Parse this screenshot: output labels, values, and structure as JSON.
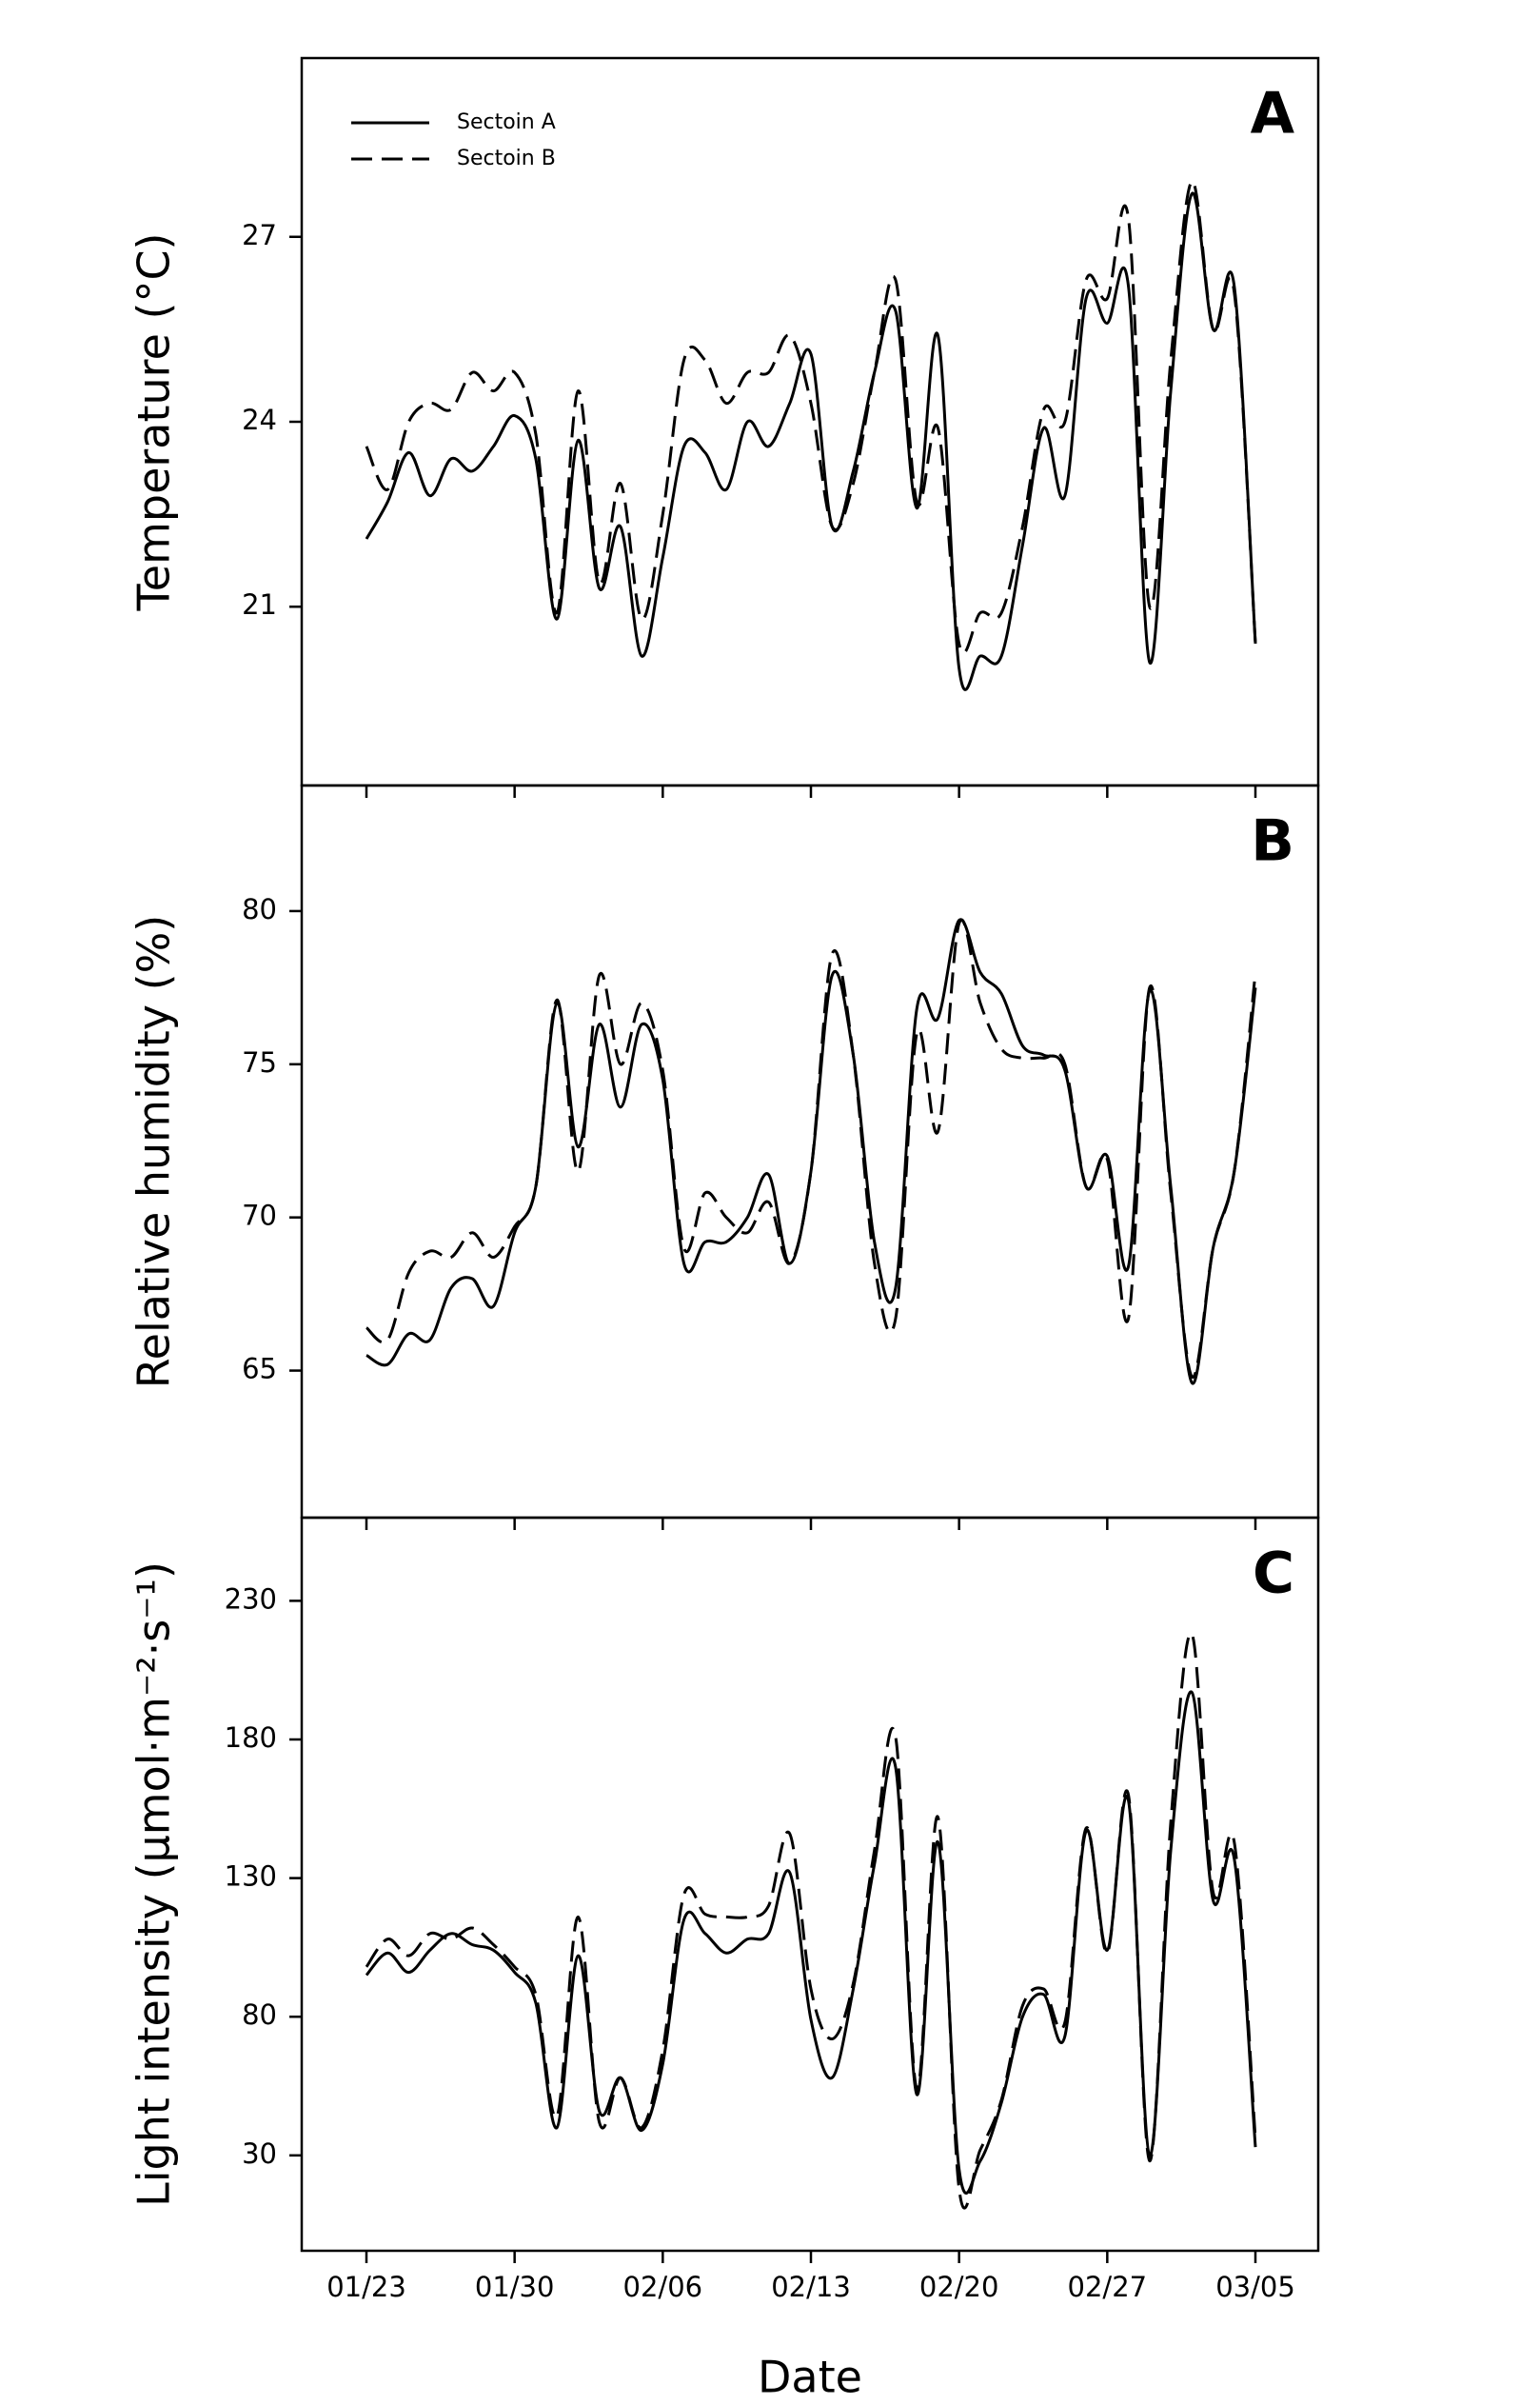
{
  "chart_data": [
    {
      "type": "line",
      "label": "A",
      "ylabel": "Temperature (°C)",
      "ylim": [
        18.1,
        29.9
      ],
      "yticks": [
        21,
        24,
        27
      ],
      "legend": "upper left",
      "series": [
        {
          "name": "Sectoin A",
          "color": "#000000",
          "line_style": "solid",
          "values": [
            22.1,
            22.7,
            23.5,
            22.8,
            23.4,
            23.2,
            23.6,
            24.1,
            23.4,
            20.8,
            23.7,
            21.3,
            22.3,
            20.2,
            21.8,
            23.6,
            23.5,
            22.9,
            24.0,
            23.6,
            24.3,
            25.1,
            22.3,
            23.2,
            24.8,
            25.8,
            22.6,
            25.4,
            20.0,
            20.2,
            20.2,
            22.0,
            23.9,
            22.8,
            26.0,
            25.6,
            26.2,
            20.1,
            24.5,
            27.7,
            25.5,
            26.2,
            20.4
          ]
        },
        {
          "name": "Sectoin B",
          "color": "#000000",
          "line_style": "dashed",
          "values": [
            23.6,
            22.9,
            24.0,
            24.3,
            24.2,
            24.8,
            24.5,
            24.8,
            23.8,
            20.9,
            24.5,
            21.4,
            23.0,
            20.8,
            22.5,
            25.0,
            25.0,
            24.3,
            24.8,
            24.8,
            25.4,
            24.3,
            22.3,
            23.0,
            24.8,
            26.3,
            22.7,
            23.9,
            20.4,
            20.9,
            20.9,
            22.3,
            24.2,
            24.0,
            26.3,
            26.0,
            27.3,
            21.0,
            25.0,
            27.9,
            25.5,
            26.1,
            20.4
          ]
        }
      ]
    },
    {
      "type": "line",
      "label": "B",
      "ylabel": "Relative humidity (%)",
      "ylim": [
        60.2,
        84.1
      ],
      "yticks": [
        65,
        70,
        75,
        80
      ],
      "series": [
        {
          "color": "#000000",
          "line_style": "solid",
          "values": [
            65.5,
            65.2,
            66.2,
            66.0,
            67.7,
            68.0,
            67.1,
            69.5,
            71.0,
            77.0,
            72.3,
            76.3,
            73.6,
            76.3,
            74.5,
            68.5,
            69.2,
            69.2,
            70.0,
            71.4,
            68.5,
            71.5,
            77.9,
            75.3,
            69.2,
            67.7,
            76.8,
            76.5,
            79.7,
            78.0,
            77.3,
            75.6,
            75.3,
            74.8,
            71.0,
            72.0,
            68.4,
            77.4,
            71.0,
            64.6,
            69.0,
            71.5,
            77.5
          ]
        },
        {
          "color": "#000000",
          "line_style": "dashed",
          "values": [
            66.4,
            66.0,
            68.2,
            68.9,
            68.7,
            69.5,
            68.7,
            69.7,
            71.0,
            77.1,
            71.5,
            77.9,
            75.0,
            77.0,
            74.8,
            69.0,
            70.8,
            70.0,
            69.5,
            70.5,
            68.5,
            71.5,
            78.6,
            75.3,
            68.5,
            66.7,
            76.0,
            72.8,
            79.6,
            77.0,
            75.5,
            75.2,
            75.2,
            75.0,
            71.0,
            71.9,
            66.7,
            77.5,
            70.8,
            64.8,
            69.0,
            71.5,
            78.0
          ]
        }
      ]
    },
    {
      "type": "line",
      "label": "C",
      "ylabel": "Light intensity (μmol·m⁻²·s⁻¹)",
      "xlabel": "Date",
      "ylim": [
        -4.4,
        260
      ],
      "yticks": [
        30,
        80,
        130,
        180,
        230
      ],
      "categories": [
        "01/23",
        null,
        null,
        null,
        null,
        null,
        null,
        "01/30",
        null,
        null,
        null,
        null,
        null,
        null,
        "02/06",
        null,
        null,
        null,
        null,
        null,
        null,
        "02/13",
        null,
        null,
        null,
        null,
        null,
        null,
        "02/20",
        null,
        null,
        null,
        null,
        null,
        null,
        "02/27",
        null,
        null,
        null,
        null,
        null,
        null,
        "03/05"
      ],
      "series": [
        {
          "color": "#000000",
          "line_style": "solid",
          "values": [
            95,
            103,
            96,
            104,
            110,
            106,
            104,
            96,
            85,
            40,
            102,
            46,
            58,
            39,
            63,
            115,
            110,
            103,
            108,
            110,
            132,
            79,
            58,
            90,
            135,
            170,
            52,
            143,
            25,
            28,
            49,
            80,
            88,
            73,
            147,
            104,
            158,
            30,
            140,
            197,
            122,
            137,
            33
          ]
        },
        {
          "color": "#000000",
          "line_style": "dashed",
          "values": [
            98,
            108,
            102,
            110,
            108,
            112,
            106,
            98,
            88,
            44,
            116,
            42,
            58,
            40,
            68,
            124,
            117,
            116,
            116,
            120,
            146,
            90,
            72,
            92,
            140,
            181,
            54,
            152,
            18,
            32,
            50,
            84,
            90,
            78,
            148,
            103,
            160,
            28,
            150,
            218,
            125,
            143,
            36
          ]
        }
      ]
    }
  ]
}
